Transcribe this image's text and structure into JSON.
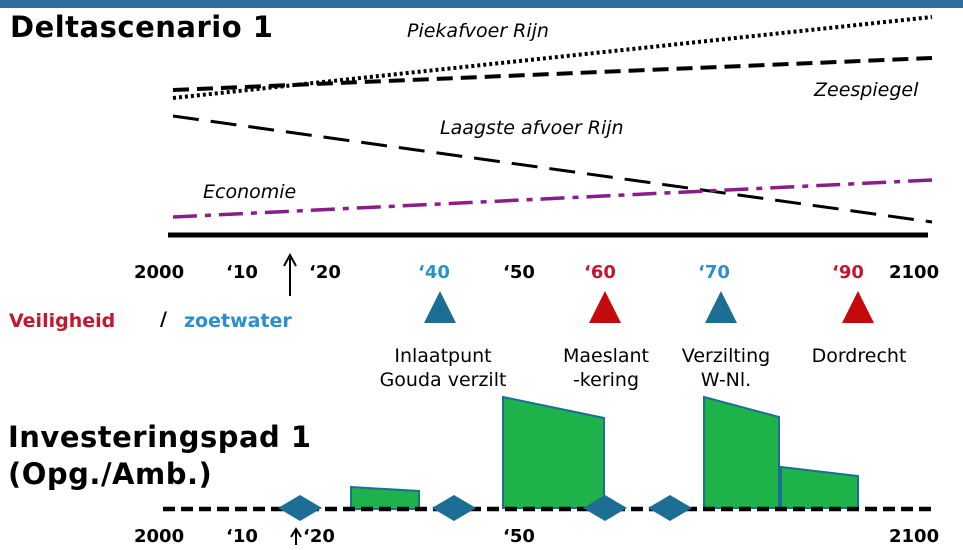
{
  "header_bar_color": "#2f6f9f",
  "scenario": {
    "title": "Deltascenario 1",
    "curves": {
      "peak_discharge": "Piekafvoer Rijn",
      "sea_level": "Zeespiegel",
      "lowest_discharge": "Laagste afvoer Rijn",
      "economy": "Economie"
    },
    "timeline_ticks": [
      "2000",
      "‘10",
      "‘20",
      "‘40",
      "‘50",
      "‘60",
      "‘70",
      "‘90",
      "2100"
    ],
    "legend": {
      "safety": "Veiligheid",
      "separator": "/",
      "freshwater": "zoetwater",
      "safety_color": "#c2172d",
      "freshwater_color": "#2b8fcd"
    },
    "events": [
      {
        "line1": "Inlaatpunt",
        "line2": "Gouda verzilt",
        "type": "zoetwater"
      },
      {
        "line1": "Maeslant",
        "line2": "-kering",
        "type": "veiligheid"
      },
      {
        "line1": "Verzilting",
        "line2": "W-Nl.",
        "type": "zoetwater"
      },
      {
        "line1": "Dordrecht",
        "line2": "",
        "type": "veiligheid"
      }
    ]
  },
  "investment": {
    "title_line1": "Investeringspad 1",
    "title_line2": "(Opg./Amb.)",
    "timeline_ticks": [
      "2000",
      "‘10",
      "‘20",
      "‘50",
      "2100"
    ],
    "block_color": "#1db24a",
    "diamond_color": "#1c6e94"
  }
}
